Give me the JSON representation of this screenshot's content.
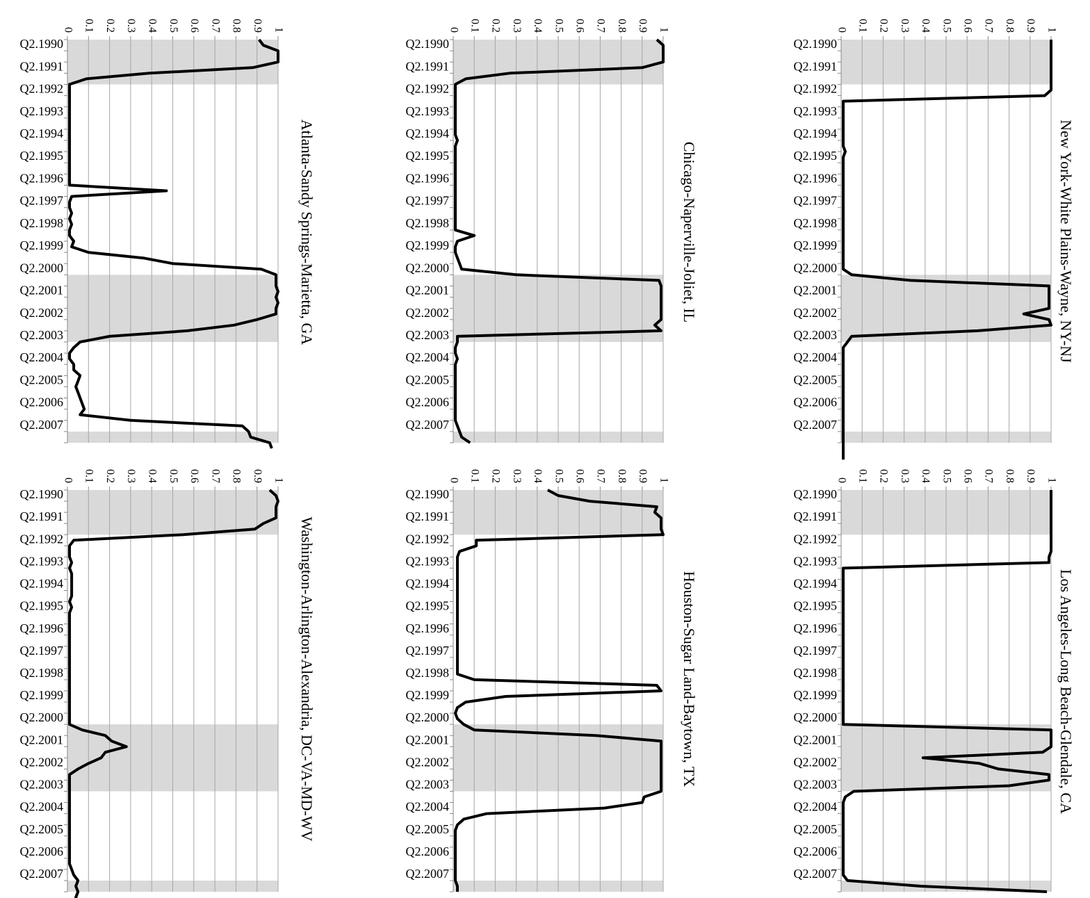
{
  "colors": {
    "recession_shading": "#d9d9d9",
    "gridline": "#a6a6a6",
    "line": "#000000",
    "axis": "#888888"
  },
  "chart_data": [
    {
      "type": "line",
      "title": "New York-White Plains-Wayne, NY-NJ",
      "xlabel": "",
      "ylabel": "",
      "ylim": [
        0,
        1
      ],
      "grid": true,
      "legend": "none",
      "y_ticks": [
        "0",
        "0.1",
        "0.2",
        "0.3",
        "0.4",
        "0.5",
        "0.6",
        "0.7",
        "0.8",
        "0.9",
        "1"
      ],
      "x_ticks": [
        "Q2.1990",
        "Q2.1991",
        "Q2.1992",
        "Q2.1993",
        "Q2.1994",
        "Q2.1995",
        "Q2.1996",
        "Q2.1997",
        "Q2.1998",
        "Q2.1999",
        "Q2.2000",
        "Q2.2001",
        "Q2.2002",
        "Q2.2003",
        "Q2.2004",
        "Q2.2005",
        "Q2.2006",
        "Q2.2007"
      ],
      "shaded_periods": [
        [
          0,
          8
        ],
        [
          42,
          54
        ],
        [
          70,
          76
        ]
      ],
      "values": [
        1,
        1,
        1,
        1,
        1,
        1,
        1,
        1,
        1,
        1,
        0.97,
        0.01,
        0.01,
        0.01,
        0.01,
        0.01,
        0.01,
        0.01,
        0.01,
        0.01,
        0.02,
        0.01,
        0.01,
        0.01,
        0.01,
        0.01,
        0.01,
        0.01,
        0.01,
        0.01,
        0.01,
        0.01,
        0.01,
        0.01,
        0.01,
        0.01,
        0.01,
        0.01,
        0.01,
        0.01,
        0.01,
        0.01,
        0.05,
        0.33,
        0.99,
        0.99,
        0.99,
        0.99,
        0.99,
        0.87,
        0.99,
        1,
        0.65,
        0.05,
        0.03,
        0.01,
        0.01,
        0.01,
        0.01,
        0.01,
        0.01,
        0.01,
        0.01,
        0.01,
        0.01,
        0.01,
        0.01,
        0.01,
        0.01,
        0.01,
        0.01,
        0.01,
        0.01,
        0.01,
        0.01,
        0.01
      ]
    },
    {
      "type": "line",
      "title": "Chicago-Naperville-Joliet, IL",
      "xlabel": "",
      "ylabel": "",
      "ylim": [
        0,
        1
      ],
      "grid": true,
      "legend": "none",
      "y_ticks": [
        "0",
        "0.1",
        "0.2",
        "0.3",
        "0.4",
        "0.5",
        "0.6",
        "0.7",
        "0.8",
        "0.9",
        "1"
      ],
      "x_ticks": [
        "Q2.1990",
        "Q2.1991",
        "Q2.1992",
        "Q2.1993",
        "Q2.1994",
        "Q2.1995",
        "Q2.1996",
        "Q2.1997",
        "Q2.1998",
        "Q2.1999",
        "Q2.2000",
        "Q2.2001",
        "Q2.2002",
        "Q2.2003",
        "Q2.2004",
        "Q2.2005",
        "Q2.2006",
        "Q2.2007"
      ],
      "shaded_periods": [
        [
          0,
          8
        ],
        [
          42,
          54
        ],
        [
          70,
          76
        ]
      ],
      "values": [
        0.97,
        1,
        1,
        1,
        1,
        0.9,
        0.27,
        0.06,
        0.01,
        0.01,
        0.01,
        0.01,
        0.01,
        0.01,
        0.01,
        0.01,
        0.01,
        0.01,
        0.02,
        0.01,
        0.01,
        0.01,
        0.01,
        0.01,
        0.01,
        0.01,
        0.01,
        0.01,
        0.01,
        0.01,
        0.01,
        0.01,
        0.01,
        0.01,
        0.01,
        0.1,
        0.02,
        0.01,
        0.01,
        0.02,
        0.03,
        0.04,
        0.3,
        0.98,
        0.99,
        0.99,
        0.99,
        0.99,
        0.99,
        0.99,
        0.99,
        0.96,
        0.99,
        0.02,
        0.02,
        0.01,
        0.01,
        0.02,
        0.01,
        0.01,
        0.01,
        0.01,
        0.01,
        0.01,
        0.01,
        0.01,
        0.01,
        0.01,
        0.01,
        0.02,
        0.03,
        0.04,
        0.08
      ]
    },
    {
      "type": "line",
      "title": "Atlanta-Sandy Springs-Marietta, GA",
      "xlabel": "",
      "ylabel": "",
      "ylim": [
        0,
        1
      ],
      "grid": true,
      "legend": "none",
      "y_ticks": [
        "0",
        "0.1",
        "0.2",
        "0.3",
        "0.4",
        "0.5",
        "0.6",
        "0.7",
        "0.8",
        "0.9",
        "1"
      ],
      "x_ticks": [
        "Q2.1990",
        "Q2.1991",
        "Q2.1992",
        "Q2.1993",
        "Q2.1994",
        "Q2.1995",
        "Q2.1996",
        "Q2.1997",
        "Q2.1998",
        "Q2.1999",
        "Q2.2000",
        "Q2.2001",
        "Q2.2002",
        "Q2.2003",
        "Q2.2004",
        "Q2.2005",
        "Q2.2006",
        "Q2.2007"
      ],
      "shaded_periods": [
        [
          0,
          8
        ],
        [
          42,
          54
        ],
        [
          70,
          76
        ]
      ],
      "values": [
        0.91,
        0.93,
        1,
        1,
        1,
        0.88,
        0.39,
        0.09,
        0.01,
        0.01,
        0.01,
        0.01,
        0.01,
        0.01,
        0.01,
        0.01,
        0.01,
        0.01,
        0.01,
        0.01,
        0.01,
        0.01,
        0.01,
        0.01,
        0.01,
        0.01,
        0.01,
        0.47,
        0.02,
        0.01,
        0.01,
        0.02,
        0.01,
        0.02,
        0.01,
        0.01,
        0.03,
        0.02,
        0.1,
        0.36,
        0.5,
        0.92,
        0.99,
        0.99,
        0.99,
        1,
        0.99,
        1,
        0.99,
        0.99,
        0.9,
        0.79,
        0.57,
        0.2,
        0.06,
        0.03,
        0.01,
        0.01,
        0.03,
        0.03,
        0.06,
        0.05,
        0.04,
        0.05,
        0.06,
        0.07,
        0.08,
        0.06,
        0.3,
        0.83,
        0.86,
        0.87,
        0.96,
        0.97
      ]
    },
    {
      "type": "line",
      "title": "Los Angeles-Long Beach-Glendale, CA",
      "xlabel": "",
      "ylabel": "",
      "ylim": [
        0,
        1
      ],
      "grid": true,
      "legend": "none",
      "y_ticks": [
        "0",
        "0.1",
        "0.2",
        "0.3",
        "0.4",
        "0.5",
        "0.6",
        "0.7",
        "0.8",
        "0.9",
        "1"
      ],
      "x_ticks": [
        "Q2.1990",
        "Q2.1991",
        "Q2.1992",
        "Q2.1993",
        "Q2.1994",
        "Q2.1995",
        "Q2.1996",
        "Q2.1997",
        "Q2.1998",
        "Q2.1999",
        "Q2.2000",
        "Q2.2001",
        "Q2.2002",
        "Q2.2003",
        "Q2.2004",
        "Q2.2005",
        "Q2.2006",
        "Q2.2007"
      ],
      "shaded_periods": [
        [
          0,
          8
        ],
        [
          42,
          54
        ],
        [
          70,
          76
        ]
      ],
      "values": [
        1,
        1,
        1,
        1,
        1,
        1,
        1,
        1,
        1,
        1,
        1,
        1,
        0.99,
        0.99,
        0.01,
        0.01,
        0.01,
        0.01,
        0.01,
        0.01,
        0.01,
        0.01,
        0.01,
        0.01,
        0.01,
        0.01,
        0.01,
        0.01,
        0.01,
        0.01,
        0.01,
        0.01,
        0.01,
        0.01,
        0.01,
        0.01,
        0.01,
        0.01,
        0.01,
        0.01,
        0.01,
        0.01,
        0.01,
        1,
        1,
        1,
        1,
        0.96,
        0.39,
        0.66,
        0.75,
        0.99,
        0.99,
        0.8,
        0.06,
        0.02,
        0.01,
        0.01,
        0.01,
        0.01,
        0.01,
        0.01,
        0.01,
        0.01,
        0.01,
        0.01,
        0.01,
        0.01,
        0.01,
        0.01,
        0.03,
        0.38,
        0.98
      ]
    },
    {
      "type": "line",
      "title": "Houston-Sugar Land-Baytown, TX",
      "xlabel": "",
      "ylabel": "",
      "ylim": [
        0,
        1
      ],
      "grid": true,
      "legend": "none",
      "y_ticks": [
        "0",
        "0.1",
        "0.2",
        "0.3",
        "0.4",
        "0.5",
        "0.6",
        "0.7",
        "0.8",
        "0.9",
        "1"
      ],
      "x_ticks": [
        "Q2.1990",
        "Q2.1991",
        "Q2.1992",
        "Q2.1993",
        "Q2.1994",
        "Q2.1995",
        "Q2.1996",
        "Q2.1997",
        "Q2.1998",
        "Q2.1999",
        "Q2.2000",
        "Q2.2001",
        "Q2.2002",
        "Q2.2003",
        "Q2.2004",
        "Q2.2005",
        "Q2.2006",
        "Q2.2007"
      ],
      "shaded_periods": [
        [
          0,
          8
        ],
        [
          42,
          54
        ],
        [
          70,
          76
        ]
      ],
      "values": [
        0.45,
        0.5,
        0.65,
        0.97,
        0.96,
        0.99,
        0.99,
        0.99,
        1,
        0.11,
        0.11,
        0.03,
        0.02,
        0.02,
        0.02,
        0.02,
        0.02,
        0.02,
        0.02,
        0.02,
        0.02,
        0.02,
        0.02,
        0.02,
        0.02,
        0.02,
        0.02,
        0.02,
        0.02,
        0.02,
        0.02,
        0.02,
        0.02,
        0.02,
        0.1,
        0.97,
        0.99,
        0.25,
        0.06,
        0.02,
        0.01,
        0.02,
        0.05,
        0.1,
        0.68,
        0.99,
        0.99,
        0.99,
        0.99,
        0.99,
        0.99,
        0.99,
        0.99,
        0.99,
        0.99,
        0.91,
        0.9,
        0.72,
        0.16,
        0.05,
        0.02,
        0.01,
        0.01,
        0.01,
        0.01,
        0.01,
        0.01,
        0.01,
        0.01,
        0.01,
        0.01,
        0.02,
        0.02
      ]
    },
    {
      "type": "line",
      "title": "Washington-Arlington-Alexandria, DC-VA-MD-WV",
      "xlabel": "",
      "ylabel": "",
      "ylim": [
        0,
        1
      ],
      "grid": true,
      "legend": "none",
      "y_ticks": [
        "0",
        "0.1",
        "0.2",
        "0.3",
        "0.4",
        "0.5",
        "0.6",
        "0.7",
        "0.8",
        "0.9",
        "1"
      ],
      "x_ticks": [
        "Q2.1990",
        "Q2.1991",
        "Q2.1992",
        "Q2.1993",
        "Q2.1994",
        "Q2.1995",
        "Q2.1996",
        "Q2.1997",
        "Q2.1998",
        "Q2.1999",
        "Q2.2000",
        "Q2.2001",
        "Q2.2002",
        "Q2.2003",
        "Q2.2004",
        "Q2.2005",
        "Q2.2006",
        "Q2.2007"
      ],
      "shaded_periods": [
        [
          0,
          8
        ],
        [
          42,
          54
        ],
        [
          70,
          76
        ]
      ],
      "values": [
        0.96,
        0.99,
        1,
        0.99,
        0.99,
        0.99,
        0.93,
        0.89,
        0.55,
        0.03,
        0.01,
        0.01,
        0.01,
        0.02,
        0.01,
        0.02,
        0.02,
        0.02,
        0.02,
        0.02,
        0.01,
        0.02,
        0.01,
        0.01,
        0.01,
        0.01,
        0.01,
        0.01,
        0.01,
        0.01,
        0.01,
        0.01,
        0.01,
        0.01,
        0.01,
        0.01,
        0.01,
        0.01,
        0.01,
        0.01,
        0.01,
        0.01,
        0.01,
        0.07,
        0.18,
        0.21,
        0.28,
        0.18,
        0.16,
        0.1,
        0.05,
        0.01,
        0.01,
        0.01,
        0.01,
        0.01,
        0.01,
        0.01,
        0.01,
        0.01,
        0.01,
        0.01,
        0.01,
        0.01,
        0.01,
        0.01,
        0.01,
        0.01,
        0.02,
        0.03,
        0.05,
        0.04,
        0.05,
        0.04,
        0.05
      ]
    }
  ]
}
